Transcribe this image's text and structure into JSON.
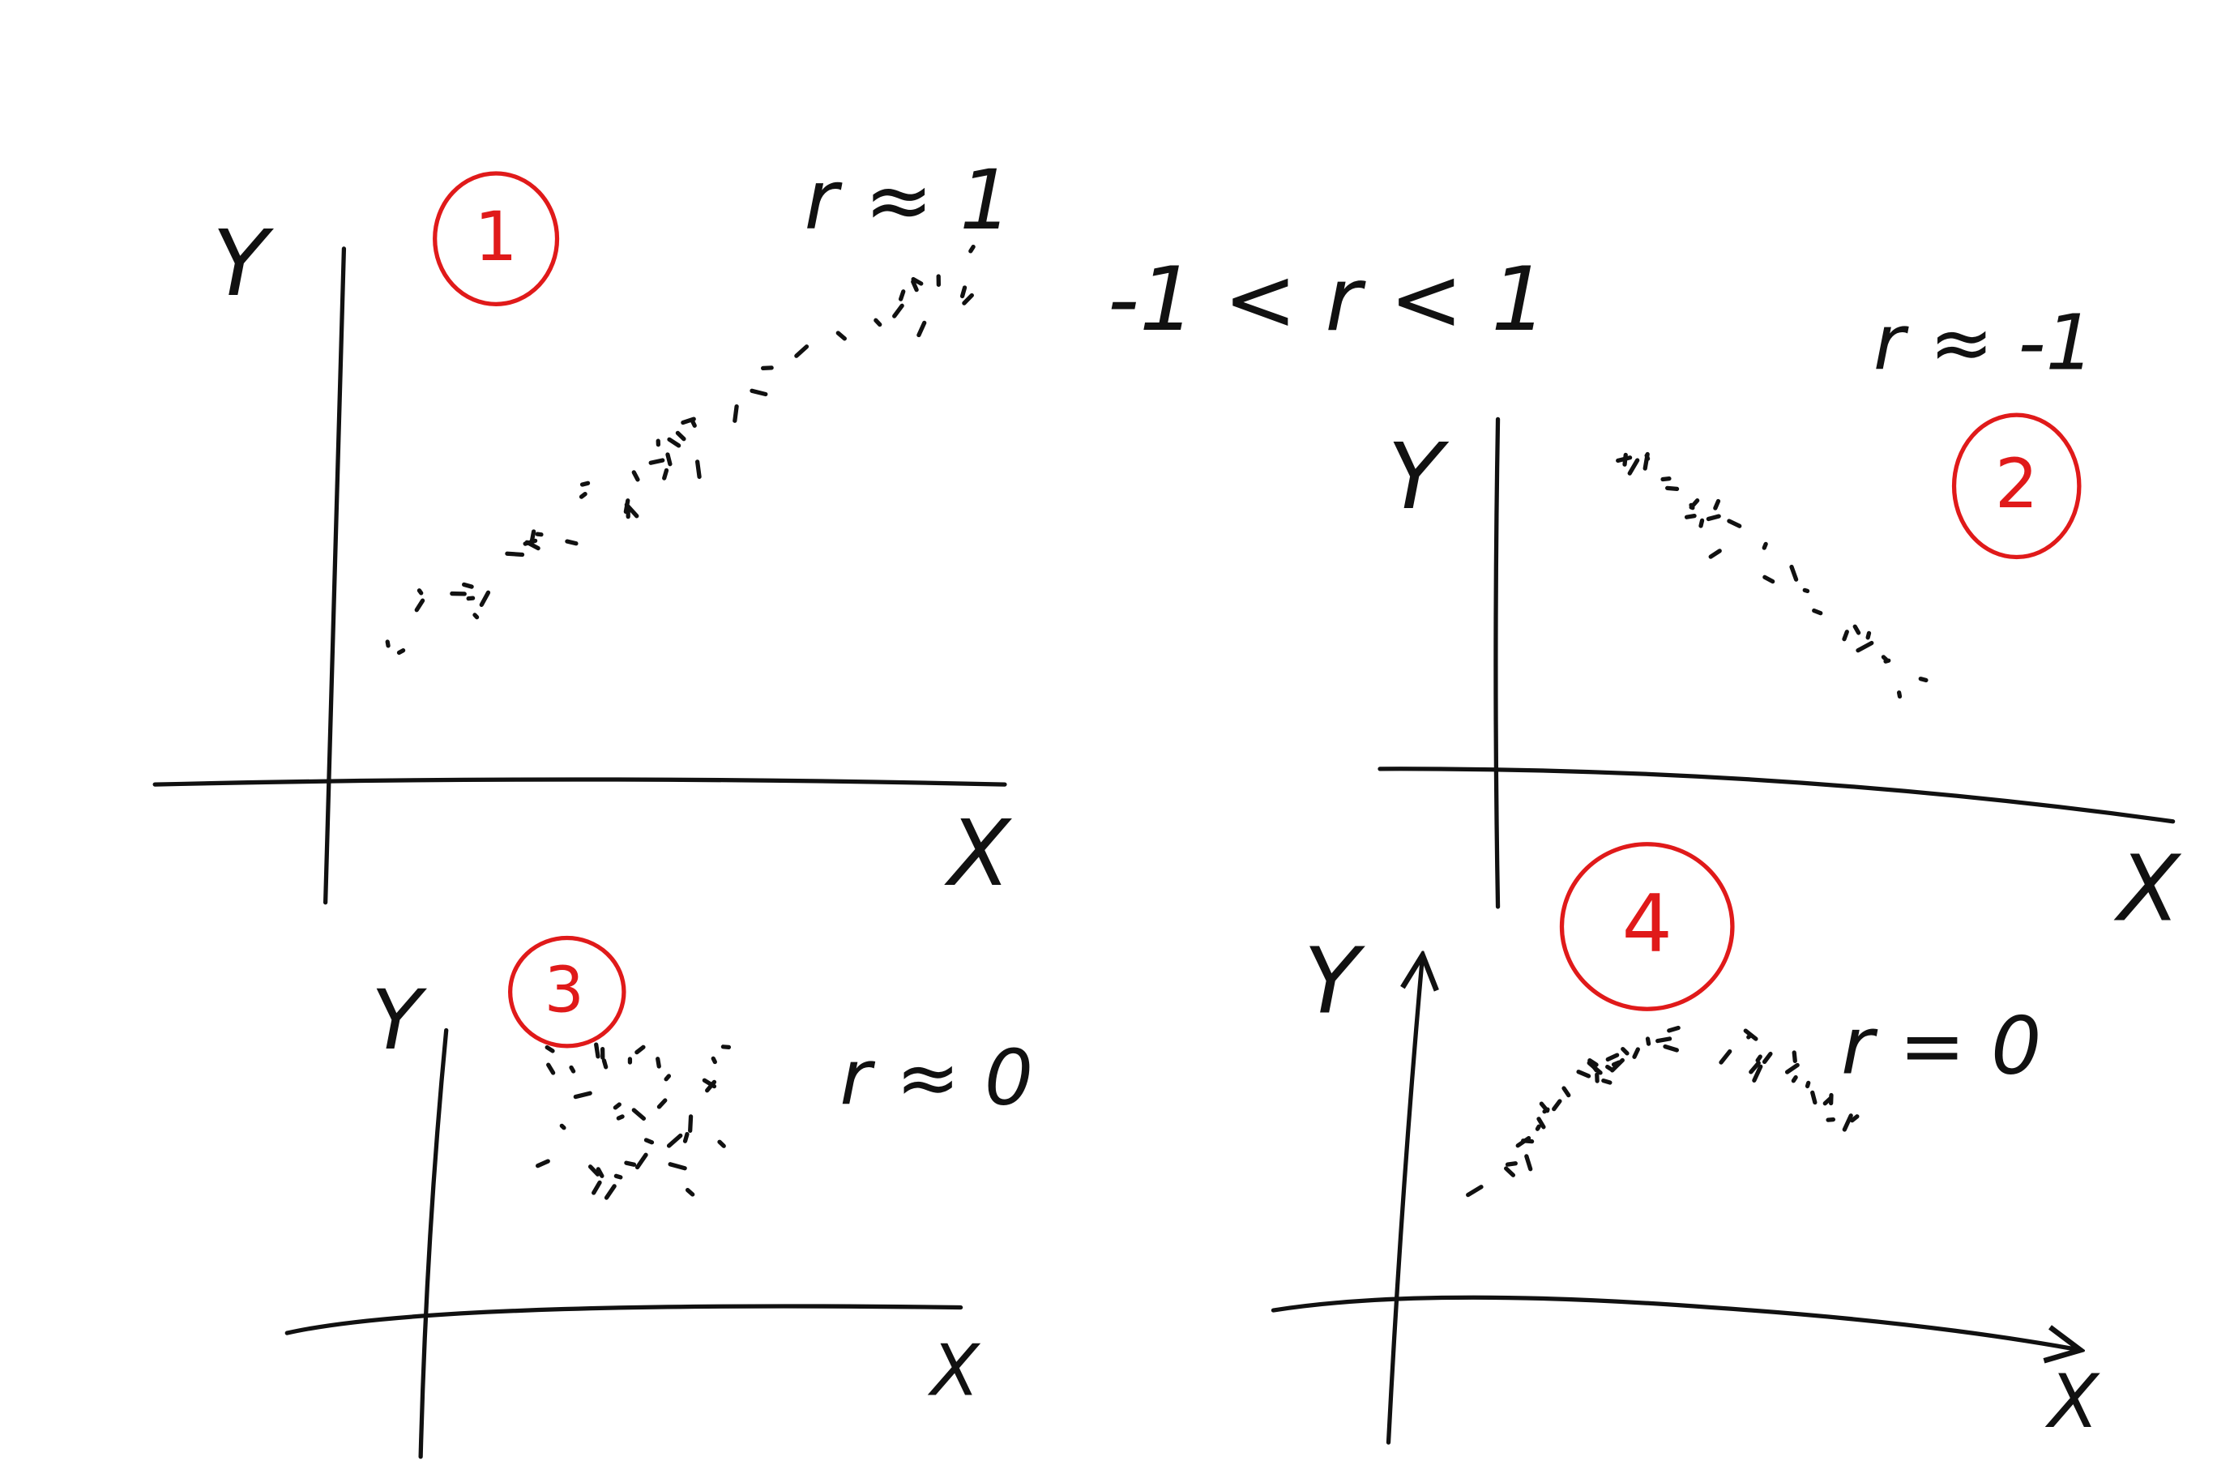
{
  "range_note": "-1 < r < 1",
  "panels": [
    {
      "number": "1",
      "annotation": "r ≈ 1",
      "y_label": "Y",
      "x_label": "X"
    },
    {
      "number": "2",
      "annotation": "r ≈ -1",
      "y_label": "Y",
      "x_label": "X"
    },
    {
      "number": "3",
      "annotation": "r ≈ 0",
      "y_label": "Y",
      "x_label": "X"
    },
    {
      "number": "4",
      "annotation": "r = 0",
      "y_label": "Y",
      "x_label": "X"
    }
  ]
}
